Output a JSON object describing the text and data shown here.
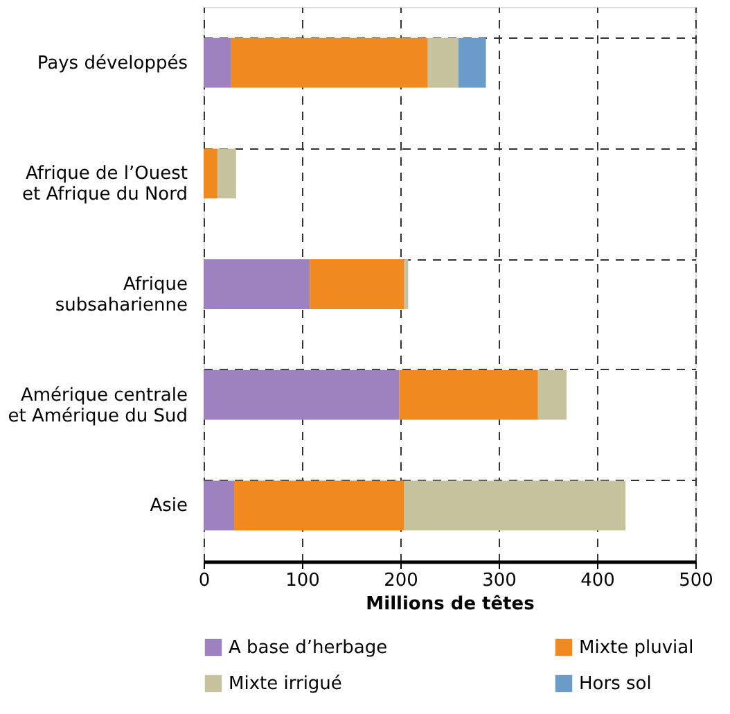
{
  "chart_data": {
    "type": "bar",
    "orientation": "horizontal",
    "stacked": true,
    "categories": [
      "Pays développés",
      "Afrique de l’Ouest\net Afrique du Nord",
      "Afrique\nsubsaharienne",
      "Amérique centrale\net Amérique du Sud",
      "Asie"
    ],
    "series": [
      {
        "name": "A base d’herbage",
        "color": "#9e82bf",
        "values": [
          28,
          null,
          108,
          199,
          31
        ]
      },
      {
        "name": "Mixte pluvial",
        "color": "#f08a1e",
        "values": [
          200,
          14,
          96,
          141,
          173
        ]
      },
      {
        "name": "Mixte irrigué",
        "color": "#c6c29e",
        "values": [
          31,
          19,
          4,
          29,
          225
        ]
      },
      {
        "name": "Hors sol",
        "color": "#6b9bc9",
        "values": [
          28,
          null,
          null,
          null,
          null
        ]
      }
    ],
    "xlabel": "Millions de têtes",
    "xlim": [
      0,
      500
    ],
    "xticks": [
      0,
      100,
      200,
      300,
      400,
      500
    ],
    "grid": true,
    "legend": "bottom"
  }
}
